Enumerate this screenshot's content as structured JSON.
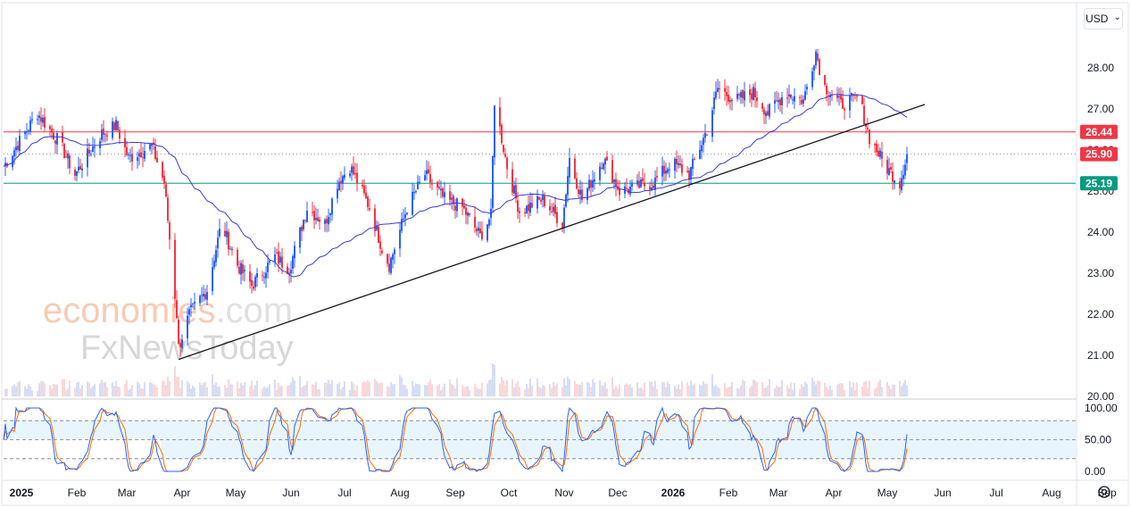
{
  "currency": {
    "label": "USD",
    "caret": "⌄"
  },
  "watermark": {
    "line1a": "economies",
    "line1b": ".com",
    "line2": "FxNewsToday"
  },
  "colors": {
    "up": "#2962ff",
    "down": "#f23645",
    "ma": "#3a3ad6",
    "support": "#089981",
    "resistance": "#f23645",
    "trend": "#131722",
    "stoch_k": "#2962ff",
    "stoch_d": "#ff6d00"
  },
  "chart_data": {
    "type": "candlestick",
    "y_range": [
      20.0,
      28.8
    ],
    "y_ticks": [
      "28.00",
      "27.00",
      "26.00",
      "25.00",
      "24.00",
      "23.00",
      "22.00",
      "21.00",
      "20.00"
    ],
    "x_ticks": [
      {
        "label": "2025",
        "bold": true
      },
      {
        "label": "Feb"
      },
      {
        "label": "Mar"
      },
      {
        "label": "Apr"
      },
      {
        "label": "May"
      },
      {
        "label": "Jun"
      },
      {
        "label": "Jul"
      },
      {
        "label": "Aug"
      },
      {
        "label": "Sep"
      },
      {
        "label": "Oct"
      },
      {
        "label": "Nov"
      },
      {
        "label": "Dec"
      },
      {
        "label": "2026",
        "bold": true
      },
      {
        "label": "Feb"
      },
      {
        "label": "Mar"
      },
      {
        "label": "Apr"
      },
      {
        "label": "May"
      },
      {
        "label": "Jun"
      },
      {
        "label": "Jul"
      },
      {
        "label": "Aug"
      },
      {
        "label": "Sep"
      }
    ],
    "price_tags": [
      {
        "label": "26.44",
        "value": 26.44,
        "type": "resistance"
      },
      {
        "label": "25.90",
        "value": 25.9,
        "type": "last"
      },
      {
        "label": "25.19",
        "value": 25.19,
        "type": "support"
      }
    ],
    "horizontal_lines": [
      {
        "name": "resistance",
        "value": 26.44
      },
      {
        "name": "support",
        "value": 25.19
      },
      {
        "name": "last-price",
        "value": 25.9
      }
    ],
    "trendline": {
      "from": {
        "date": "2025-04-09",
        "value": 20.9
      },
      "to": {
        "date": "2026-06-01",
        "value": 27.0
      }
    },
    "stochastic": {
      "y_ticks": [
        "100.00",
        "50.00",
        "0.00"
      ],
      "levels": [
        80,
        50,
        20
      ]
    },
    "close_anchors": [
      [
        "2025-01-01",
        25.6
      ],
      [
        "2025-01-20",
        26.9
      ],
      [
        "2025-02-01",
        26.2
      ],
      [
        "2025-02-10",
        25.4
      ],
      [
        "2025-02-25",
        26.4
      ],
      [
        "2025-03-05",
        26.6
      ],
      [
        "2025-03-12",
        25.8
      ],
      [
        "2025-03-25",
        26.1
      ],
      [
        "2025-04-01",
        25.2
      ],
      [
        "2025-04-03",
        24.3
      ],
      [
        "2025-04-08",
        22.0
      ],
      [
        "2025-04-09",
        21.2
      ],
      [
        "2025-04-15",
        22.0
      ],
      [
        "2025-04-25",
        22.6
      ],
      [
        "2025-05-03",
        24.2
      ],
      [
        "2025-05-12",
        23.2
      ],
      [
        "2025-05-20",
        22.7
      ],
      [
        "2025-06-02",
        23.4
      ],
      [
        "2025-06-10",
        23.1
      ],
      [
        "2025-06-20",
        24.6
      ],
      [
        "2025-06-30",
        24.2
      ],
      [
        "2025-07-07",
        25.2
      ],
      [
        "2025-07-14",
        25.6
      ],
      [
        "2025-07-25",
        24.6
      ],
      [
        "2025-08-01",
        23.6
      ],
      [
        "2025-08-05",
        23.2
      ],
      [
        "2025-08-15",
        24.6
      ],
      [
        "2025-08-25",
        25.4
      ],
      [
        "2025-09-05",
        24.8
      ],
      [
        "2025-09-15",
        24.6
      ],
      [
        "2025-09-25",
        23.9
      ],
      [
        "2025-10-01",
        24.4
      ],
      [
        "2025-10-03",
        27.2
      ],
      [
        "2025-10-10",
        25.6
      ],
      [
        "2025-10-17",
        24.5
      ],
      [
        "2025-10-30",
        24.8
      ],
      [
        "2025-11-10",
        24.2
      ],
      [
        "2025-11-14",
        25.8
      ],
      [
        "2025-11-21",
        24.8
      ],
      [
        "2025-12-03",
        25.8
      ],
      [
        "2025-12-12",
        25.0
      ],
      [
        "2025-12-31",
        25.2
      ],
      [
        "2026-01-10",
        25.7
      ],
      [
        "2026-01-20",
        25.4
      ],
      [
        "2026-01-30",
        26.5
      ],
      [
        "2026-02-05",
        27.5
      ],
      [
        "2026-02-15",
        27.2
      ],
      [
        "2026-02-25",
        27.4
      ],
      [
        "2026-03-05",
        26.9
      ],
      [
        "2026-03-15",
        27.4
      ],
      [
        "2026-03-25",
        27.2
      ],
      [
        "2026-04-01",
        28.4
      ],
      [
        "2026-04-05",
        27.6
      ],
      [
        "2026-04-15",
        27.1
      ],
      [
        "2026-04-25",
        27.3
      ],
      [
        "2026-05-01",
        26.3
      ],
      [
        "2026-05-10",
        25.6
      ],
      [
        "2026-05-18",
        25.2
      ],
      [
        "2026-05-22",
        25.9
      ]
    ]
  }
}
